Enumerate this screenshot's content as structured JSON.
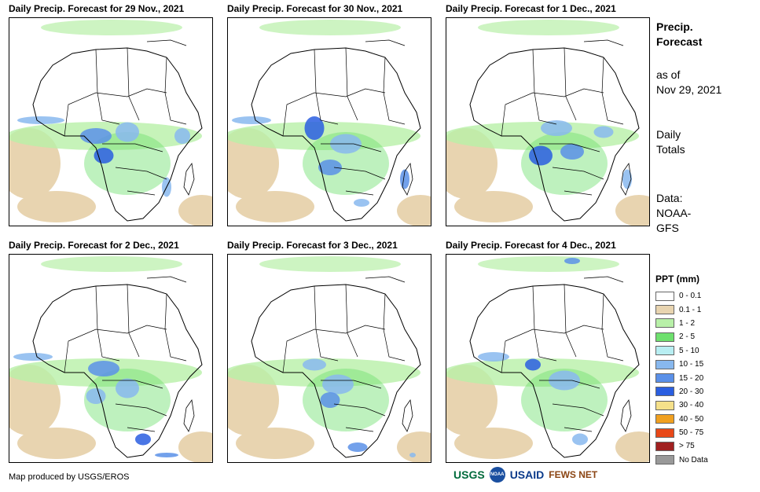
{
  "panels": [
    {
      "title": "Daily Precip. Forecast for 29 Nov., 2021"
    },
    {
      "title": "Daily Precip. Forecast for 30 Nov., 2021"
    },
    {
      "title": "Daily Precip. Forecast for 1 Dec., 2021"
    },
    {
      "title": "Daily Precip. Forecast for 2 Dec., 2021"
    },
    {
      "title": "Daily Precip. Forecast for 3 Dec., 2021"
    },
    {
      "title": "Daily Precip. Forecast for 4 Dec., 2021"
    }
  ],
  "sidebar": {
    "title_line1": "Precip.",
    "title_line2": "Forecast",
    "asof_line1": "as of",
    "asof_line2": "Nov 29, 2021",
    "totals_line1": "Daily",
    "totals_line2": "Totals",
    "data_line1": "Data:",
    "data_line2": "NOAA-",
    "data_line3": "GFS"
  },
  "legend": {
    "title": "PPT (mm)",
    "items": [
      {
        "label": "0 - 0.1",
        "color": "#ffffff"
      },
      {
        "label": "0.1 - 1",
        "color": "#e8d4b0"
      },
      {
        "label": "1 - 2",
        "color": "#b8f0a8"
      },
      {
        "label": "2 - 5",
        "color": "#6ee06e"
      },
      {
        "label": "5 - 10",
        "color": "#b8eef2"
      },
      {
        "label": "10 - 15",
        "color": "#88b8ee"
      },
      {
        "label": "15 - 20",
        "color": "#5a90e8"
      },
      {
        "label": "20 - 30",
        "color": "#2a5ee0"
      },
      {
        "label": "30 - 40",
        "color": "#f5e08a"
      },
      {
        "label": "40 - 50",
        "color": "#f0a020"
      },
      {
        "label": "50 - 75",
        "color": "#e84818"
      },
      {
        "label": "> 75",
        "color": "#a02020"
      },
      {
        "label": "No Data",
        "color": "#999999"
      }
    ]
  },
  "footer": {
    "credit": "Map produced by USGS/EROS",
    "logos": [
      "USGS",
      "NOAA",
      "USAID",
      "FEWS NET"
    ]
  }
}
